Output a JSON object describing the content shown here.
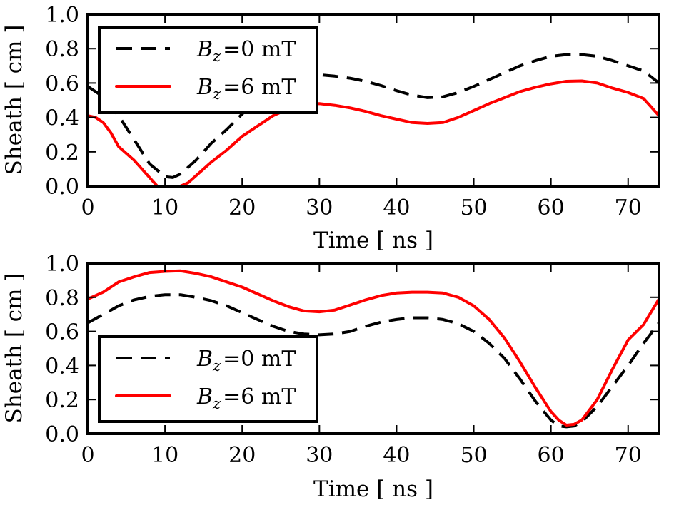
{
  "chart_data": [
    {
      "type": "line",
      "xlabel": "Time [ ns ]",
      "ylabel": "Sheath [ cm ]",
      "xlim": [
        0,
        74
      ],
      "ylim": [
        0,
        1.0
      ],
      "xticks": [
        0,
        10,
        20,
        30,
        40,
        50,
        60,
        70
      ],
      "yticks": [
        0.0,
        0.2,
        0.4,
        0.6,
        0.8,
        1.0
      ],
      "xtick_labels": [
        "0",
        "10",
        "20",
        "30",
        "40",
        "50",
        "60",
        "70"
      ],
      "ytick_labels": [
        "0.0",
        "0.2",
        "0.4",
        "0.6",
        "0.8",
        "1.0"
      ],
      "legend_position": "top-left",
      "series": [
        {
          "name": "B_z = 0 mT",
          "legend": {
            "symbol": "B",
            "subscript": "z",
            "rest": "=0 mT"
          },
          "color": "#000000",
          "style": "dashed",
          "x": [
            0,
            2,
            4,
            6,
            8,
            10,
            11,
            12,
            14,
            16,
            18,
            20,
            22,
            24,
            26,
            28,
            30,
            32,
            34,
            36,
            38,
            40,
            42,
            44,
            46,
            48,
            50,
            52,
            54,
            56,
            58,
            60,
            62,
            64,
            66,
            68,
            70,
            72,
            74
          ],
          "y": [
            0.58,
            0.52,
            0.41,
            0.27,
            0.13,
            0.055,
            0.05,
            0.07,
            0.15,
            0.25,
            0.33,
            0.42,
            0.5,
            0.57,
            0.62,
            0.645,
            0.648,
            0.64,
            0.628,
            0.61,
            0.585,
            0.555,
            0.53,
            0.515,
            0.52,
            0.545,
            0.58,
            0.62,
            0.66,
            0.7,
            0.73,
            0.755,
            0.765,
            0.765,
            0.755,
            0.73,
            0.7,
            0.67,
            0.6
          ]
        },
        {
          "name": "B_z = 6 mT",
          "legend": {
            "symbol": "B",
            "subscript": "z",
            "rest": "=6 mT"
          },
          "color": "#ff0000",
          "style": "solid",
          "x": [
            0,
            1,
            2,
            3,
            4,
            6,
            8,
            9,
            10,
            11,
            12,
            13,
            14,
            16,
            18,
            20,
            22,
            24,
            26,
            28,
            30,
            32,
            34,
            36,
            38,
            40,
            42,
            44,
            46,
            48,
            50,
            52,
            54,
            56,
            58,
            60,
            62,
            64,
            66,
            68,
            70,
            72,
            73,
            74
          ],
          "y": [
            0.41,
            0.4,
            0.37,
            0.31,
            0.23,
            0.15,
            0.05,
            0.0,
            0.0,
            0.0,
            0.0,
            0.02,
            0.06,
            0.14,
            0.21,
            0.29,
            0.35,
            0.41,
            0.45,
            0.475,
            0.48,
            0.47,
            0.455,
            0.435,
            0.41,
            0.39,
            0.37,
            0.365,
            0.37,
            0.4,
            0.44,
            0.48,
            0.515,
            0.55,
            0.575,
            0.595,
            0.61,
            0.612,
            0.6,
            0.57,
            0.545,
            0.51,
            0.46,
            0.41
          ]
        }
      ]
    },
    {
      "type": "line",
      "xlabel": "Time [ ns ]",
      "ylabel": "Sheath [ cm ]",
      "xlim": [
        0,
        74
      ],
      "ylim": [
        0,
        1.0
      ],
      "xticks": [
        0,
        10,
        20,
        30,
        40,
        50,
        60,
        70
      ],
      "yticks": [
        0.0,
        0.2,
        0.4,
        0.6,
        0.8,
        1.0
      ],
      "xtick_labels": [
        "0",
        "10",
        "20",
        "30",
        "40",
        "50",
        "60",
        "70"
      ],
      "ytick_labels": [
        "0.0",
        "0.2",
        "0.4",
        "0.6",
        "0.8",
        "1.0"
      ],
      "legend_position": "bottom-left",
      "series": [
        {
          "name": "B_z = 0 mT",
          "legend": {
            "symbol": "B",
            "subscript": "z",
            "rest": "=0 mT"
          },
          "color": "#000000",
          "style": "dashed",
          "x": [
            0,
            2,
            4,
            6,
            8,
            10,
            12,
            14,
            16,
            18,
            20,
            22,
            24,
            26,
            28,
            30,
            32,
            34,
            36,
            38,
            40,
            42,
            44,
            46,
            48,
            50,
            52,
            54,
            56,
            58,
            60,
            61,
            62,
            63,
            64,
            66,
            68,
            70,
            72,
            74
          ],
          "y": [
            0.65,
            0.7,
            0.75,
            0.785,
            0.805,
            0.815,
            0.815,
            0.8,
            0.78,
            0.75,
            0.71,
            0.67,
            0.63,
            0.6,
            0.585,
            0.58,
            0.585,
            0.6,
            0.63,
            0.655,
            0.67,
            0.68,
            0.68,
            0.67,
            0.645,
            0.6,
            0.53,
            0.44,
            0.32,
            0.19,
            0.08,
            0.045,
            0.04,
            0.045,
            0.07,
            0.16,
            0.28,
            0.4,
            0.53,
            0.65
          ]
        },
        {
          "name": "B_z = 6 mT",
          "legend": {
            "symbol": "B",
            "subscript": "z",
            "rest": "=6 mT"
          },
          "color": "#ff0000",
          "style": "solid",
          "x": [
            0,
            2,
            4,
            6,
            8,
            10,
            12,
            14,
            16,
            18,
            20,
            22,
            24,
            26,
            28,
            30,
            32,
            34,
            36,
            38,
            40,
            42,
            44,
            46,
            48,
            50,
            52,
            54,
            56,
            58,
            60,
            61,
            62,
            63,
            64,
            66,
            68,
            70,
            72,
            74
          ],
          "y": [
            0.79,
            0.83,
            0.89,
            0.92,
            0.945,
            0.952,
            0.955,
            0.94,
            0.92,
            0.89,
            0.86,
            0.82,
            0.78,
            0.745,
            0.72,
            0.715,
            0.725,
            0.755,
            0.785,
            0.81,
            0.825,
            0.83,
            0.83,
            0.825,
            0.8,
            0.75,
            0.67,
            0.56,
            0.42,
            0.27,
            0.13,
            0.08,
            0.05,
            0.055,
            0.08,
            0.2,
            0.38,
            0.55,
            0.64,
            0.79
          ]
        }
      ]
    }
  ]
}
